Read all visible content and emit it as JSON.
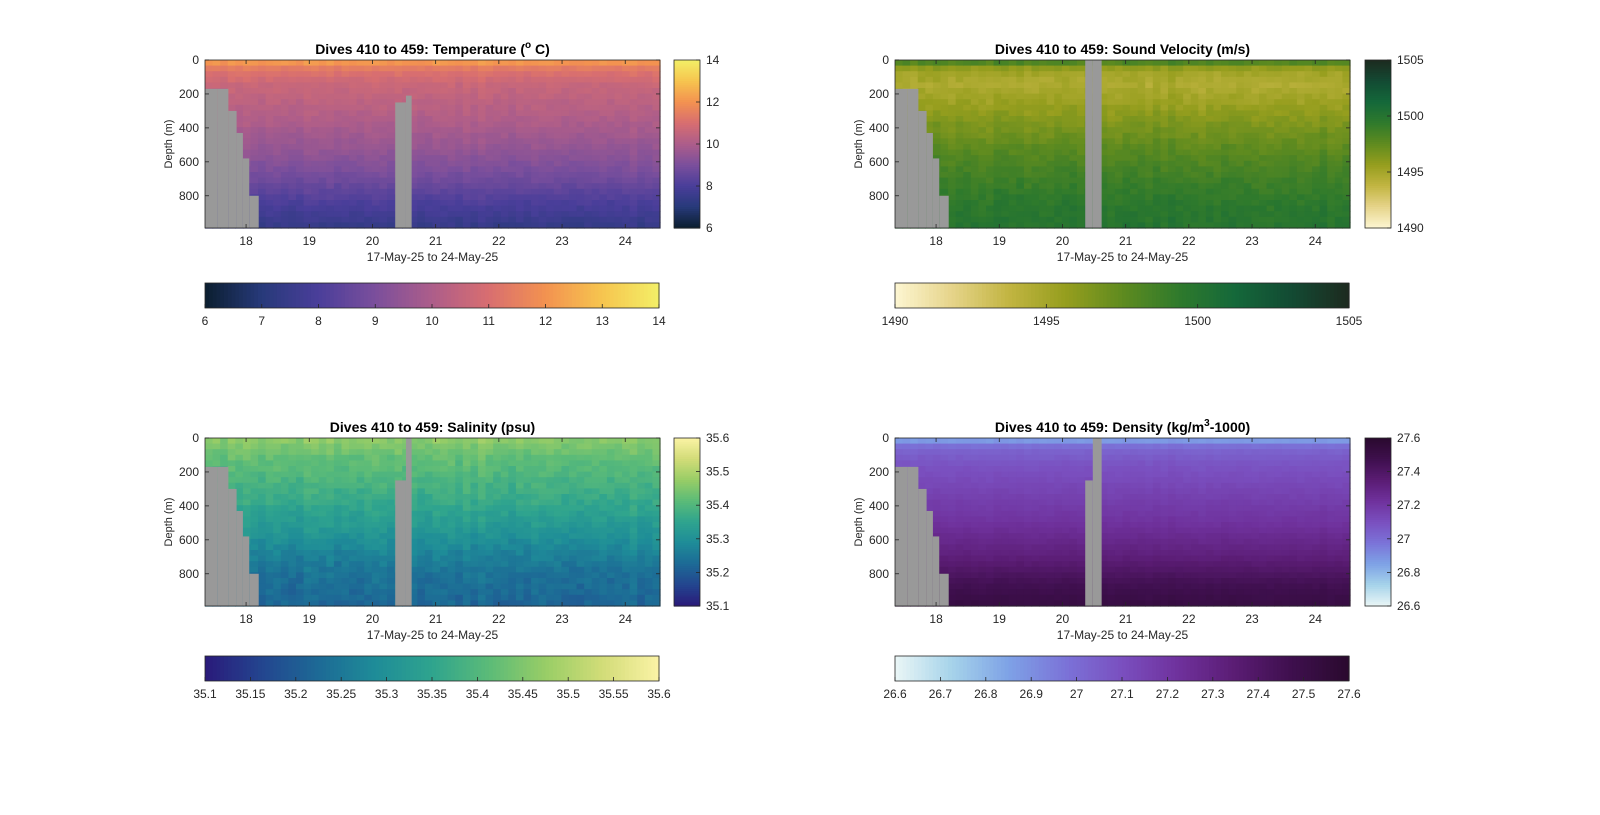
{
  "figure": {
    "background": "#ffffff",
    "mask_color": "#999999"
  },
  "chart_data": [
    {
      "type": "heatmap",
      "key": "temp",
      "title": "Dives 410 to 459: Temperature (° C)",
      "title_parts": {
        "before": "Dives 410 to 459: Temperature (",
        "sup": "o",
        "after": " C)"
      },
      "xlabel": "17-May-25 to 24-May-25",
      "ylabel": "Depth (m)",
      "xlim": [
        17.35,
        24.55
      ],
      "ylim": [
        0,
        990
      ],
      "x_ticks": [
        18,
        19,
        20,
        21,
        22,
        23,
        24
      ],
      "y_ticks": [
        0,
        200,
        400,
        600,
        800
      ],
      "clim": [
        6,
        14
      ],
      "colorbar_ticks": [
        6,
        8,
        10,
        12,
        14
      ],
      "hbar_ticks": [
        6,
        7,
        8,
        9,
        10,
        11,
        12,
        13,
        14
      ],
      "hbar_labels": [
        "6",
        "7",
        "8",
        "9",
        "10",
        "11",
        "12",
        "13",
        "14"
      ],
      "colormap": [
        "#0b1e2f",
        "#273a7a",
        "#4a3e9a",
        "#7b4f9c",
        "#ad5d8a",
        "#d86e70",
        "#f39250",
        "#f6c54f",
        "#f3ef67"
      ],
      "profile": {
        "depths": [
          0,
          20,
          60,
          150,
          300,
          500,
          700,
          850,
          990
        ],
        "values": [
          12.4,
          12.0,
          11.2,
          10.6,
          10.2,
          9.6,
          8.8,
          8.0,
          7.4
        ]
      },
      "gaps": [
        {
          "x": [
            17.35,
            17.55
          ],
          "top": 170
        },
        {
          "x": [
            17.55,
            17.72
          ],
          "top": 170
        },
        {
          "x": [
            17.72,
            17.85
          ],
          "top": 300
        },
        {
          "x": [
            17.85,
            17.95
          ],
          "top": 430
        },
        {
          "x": [
            17.95,
            18.05
          ],
          "top": 580
        },
        {
          "x": [
            18.05,
            18.2
          ],
          "top": 800
        },
        {
          "x": [
            20.36,
            20.53
          ],
          "top": 250
        },
        {
          "x": [
            20.53,
            20.62
          ],
          "top": 210
        }
      ],
      "variability": 0.25
    },
    {
      "type": "heatmap",
      "key": "sv",
      "title": "Dives 410 to 459: Sound Velocity (m/s)",
      "xlabel": "17-May-25 to 24-May-25",
      "ylabel": "Depth (m)",
      "xlim": [
        17.35,
        24.55
      ],
      "ylim": [
        0,
        990
      ],
      "x_ticks": [
        18,
        19,
        20,
        21,
        22,
        23,
        24
      ],
      "y_ticks": [
        0,
        200,
        400,
        600,
        800
      ],
      "clim": [
        1490,
        1505
      ],
      "colorbar_ticks": [
        1490,
        1495,
        1500,
        1505
      ],
      "hbar_ticks": [
        1490,
        1495,
        1500,
        1505
      ],
      "hbar_labels": [
        "1490",
        "1495",
        "1500",
        "1505"
      ],
      "colormap": [
        "#fdf6d2",
        "#e6d48a",
        "#c2b542",
        "#969e1e",
        "#5f8b1f",
        "#2f7a2c",
        "#14683a",
        "#134a33",
        "#1d2a1f"
      ],
      "profile": {
        "depths": [
          0,
          20,
          60,
          150,
          300,
          500,
          700,
          850,
          990
        ],
        "values": [
          1500.8,
          1497.5,
          1495.2,
          1494.6,
          1495.8,
          1497.5,
          1498.8,
          1499.6,
          1500.0
        ]
      },
      "gaps": [
        {
          "x": [
            17.35,
            17.55
          ],
          "top": 170
        },
        {
          "x": [
            17.55,
            17.72
          ],
          "top": 170
        },
        {
          "x": [
            17.72,
            17.85
          ],
          "top": 300
        },
        {
          "x": [
            17.85,
            17.95
          ],
          "top": 430
        },
        {
          "x": [
            17.95,
            18.05
          ],
          "top": 580
        },
        {
          "x": [
            18.05,
            18.2
          ],
          "top": 800
        },
        {
          "x": [
            20.36,
            20.48
          ],
          "top": 0
        },
        {
          "x": [
            20.48,
            20.62
          ],
          "top": 0
        }
      ],
      "variability": 0.7
    },
    {
      "type": "heatmap",
      "key": "sal",
      "title": "Dives 410 to 459: Salinity (psu)",
      "xlabel": "17-May-25 to 24-May-25",
      "ylabel": "Depth (m)",
      "xlim": [
        17.35,
        24.55
      ],
      "ylim": [
        0,
        990
      ],
      "x_ticks": [
        18,
        19,
        20,
        21,
        22,
        23,
        24
      ],
      "y_ticks": [
        0,
        200,
        400,
        600,
        800
      ],
      "clim": [
        35.1,
        35.6
      ],
      "colorbar_ticks": [
        35.1,
        35.2,
        35.3,
        35.4,
        35.5,
        35.6
      ],
      "colorbar_labels": [
        "35.1",
        "35.2",
        "35.3",
        "35.4",
        "35.5",
        "35.6"
      ],
      "hbar_ticks": [
        35.1,
        35.15,
        35.2,
        35.25,
        35.3,
        35.35,
        35.4,
        35.45,
        35.5,
        35.55,
        35.6
      ],
      "hbar_labels": [
        "35.1",
        "35.15",
        "35.2",
        "35.25",
        "35.3",
        "35.35",
        "35.4",
        "35.45",
        "35.5",
        "35.55",
        "35.6"
      ],
      "colormap": [
        "#2a1a7a",
        "#23458f",
        "#1d6a96",
        "#1e8c98",
        "#2fa48e",
        "#5bbb78",
        "#98cd66",
        "#d2dc78",
        "#fbf3a5"
      ],
      "profile": {
        "depths": [
          0,
          40,
          120,
          300,
          500,
          650,
          800,
          990
        ],
        "values": [
          35.47,
          35.45,
          35.42,
          35.38,
          35.33,
          35.28,
          35.24,
          35.22
        ]
      },
      "gaps": [
        {
          "x": [
            17.35,
            17.55
          ],
          "top": 170
        },
        {
          "x": [
            17.55,
            17.72
          ],
          "top": 170
        },
        {
          "x": [
            17.72,
            17.85
          ],
          "top": 300
        },
        {
          "x": [
            17.85,
            17.95
          ],
          "top": 430
        },
        {
          "x": [
            17.95,
            18.05
          ],
          "top": 580
        },
        {
          "x": [
            18.05,
            18.2
          ],
          "top": 800
        },
        {
          "x": [
            20.36,
            20.53
          ],
          "top": 250
        },
        {
          "x": [
            20.53,
            20.62
          ],
          "top": 0
        }
      ],
      "variability": 0.03
    },
    {
      "type": "heatmap",
      "key": "dens",
      "title": "Dives 410 to 459: Density (kg/m³-1000)",
      "title_parts": {
        "before": "Dives 410 to 459: Density (kg/m",
        "sup": "3",
        "after": "-1000)"
      },
      "xlabel": "17-May-25 to 24-May-25",
      "ylabel": "Depth (m)",
      "xlim": [
        17.35,
        24.55
      ],
      "ylim": [
        0,
        990
      ],
      "x_ticks": [
        18,
        19,
        20,
        21,
        22,
        23,
        24
      ],
      "y_ticks": [
        0,
        200,
        400,
        600,
        800
      ],
      "clim": [
        26.6,
        27.6
      ],
      "colorbar_ticks": [
        26.6,
        26.8,
        27.0,
        27.2,
        27.4,
        27.6
      ],
      "colorbar_labels": [
        "26.6",
        "26.8",
        "27",
        "27.2",
        "27.4",
        "27.6"
      ],
      "hbar_ticks": [
        26.6,
        26.7,
        26.8,
        26.9,
        27.0,
        27.1,
        27.2,
        27.3,
        27.4,
        27.5,
        27.6
      ],
      "hbar_labels": [
        "26.6",
        "26.7",
        "26.8",
        "26.9",
        "27",
        "27.1",
        "27.2",
        "27.3",
        "27.4",
        "27.5",
        "27.6"
      ],
      "colormap": [
        "#eaf6f6",
        "#a6d3ea",
        "#7ea2e6",
        "#7b73d8",
        "#7a4fbf",
        "#6f319c",
        "#5a1c73",
        "#3e0f4d",
        "#2a0a2e"
      ],
      "profile": {
        "depths": [
          0,
          20,
          60,
          150,
          300,
          500,
          700,
          850,
          990
        ],
        "values": [
          26.75,
          26.9,
          27.02,
          27.08,
          27.14,
          27.22,
          27.33,
          27.45,
          27.52
        ]
      },
      "gaps": [
        {
          "x": [
            17.35,
            17.55
          ],
          "top": 170
        },
        {
          "x": [
            17.55,
            17.72
          ],
          "top": 170
        },
        {
          "x": [
            17.72,
            17.85
          ],
          "top": 300
        },
        {
          "x": [
            17.85,
            17.95
          ],
          "top": 430
        },
        {
          "x": [
            17.95,
            18.05
          ],
          "top": 580
        },
        {
          "x": [
            18.05,
            18.2
          ],
          "top": 800
        },
        {
          "x": [
            20.36,
            20.48
          ],
          "top": 250
        },
        {
          "x": [
            20.48,
            20.62
          ],
          "top": 0
        }
      ],
      "variability": 0.015
    }
  ]
}
